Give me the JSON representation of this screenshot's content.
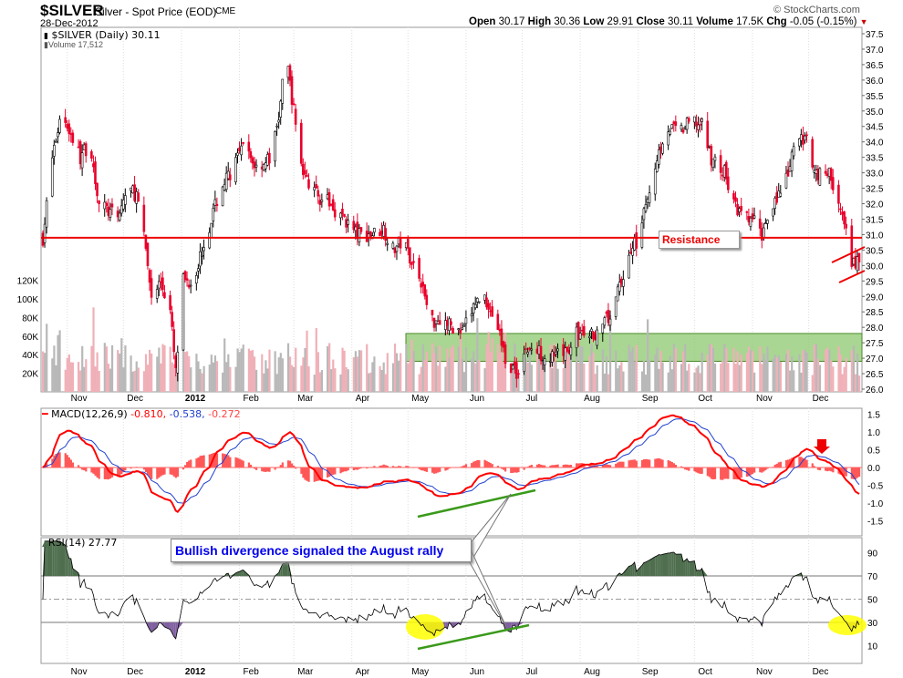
{
  "header": {
    "symbol": "$SILVER",
    "name": "Silver - Spot Price (EOD)",
    "exchange": "CME",
    "date": "28-Dec-2012",
    "brand": "© StockCharts.com",
    "quote": {
      "open_label": "Open",
      "open": "30.17",
      "high_label": "High",
      "high": "30.36",
      "low_label": "Low",
      "low": "29.91",
      "close_label": "Close",
      "close": "30.11",
      "volume_label": "Volume",
      "volume": "17.5K",
      "chg_label": "Chg",
      "chg": "-0.05 (-0.15%)"
    }
  },
  "legend": {
    "price": "$SILVER (Daily) 30.11",
    "volume": "Volume 17,512",
    "macd_name": "MACD(12,26,9)",
    "macd_v1": "-0.810,",
    "macd_v2": "-0.538,",
    "macd_v3": "-0.272",
    "rsi": "RSI(14) 27.77"
  },
  "annotations": {
    "resistance": "Resistance",
    "callout": "Bullish divergence signaled the August rally",
    "resistance_level": 30.9,
    "support_zone": [
      26.9,
      27.8
    ]
  },
  "colors": {
    "up": "#000000",
    "down": "#e8002a",
    "volume_up": "#b8b8b8",
    "volume_down": "#f0b0b8",
    "macd": "#ff0000",
    "signal": "#2040d0",
    "hist": "#ff3030",
    "zone": "#8cc86e",
    "trend": "#3a9a1a",
    "highlight": "#ffff00",
    "overbought": "#4e6e4e",
    "oversold": "#8060a0",
    "callout_text": "#0000ee"
  },
  "chart_data": {
    "type": "candlestick",
    "xrange": [
      "2011-10-19",
      "2012-12-28"
    ],
    "price_ylim": [
      26.0,
      37.5
    ],
    "price_ticks": [
      "37.5",
      "37.0",
      "36.5",
      "36.0",
      "35.5",
      "35.0",
      "34.5",
      "34.0",
      "33.5",
      "33.0",
      "32.5",
      "32.0",
      "31.5",
      "31.0",
      "30.5",
      "30.0",
      "29.5",
      "29.0",
      "28.5",
      "28.0",
      "27.5",
      "27.0",
      "26.5",
      "26.0"
    ],
    "volume_ticks": [
      "20K",
      "40K",
      "60K",
      "80K",
      "100K",
      "120K"
    ],
    "macd_ticks": [
      "1.5",
      "1.0",
      "0.5",
      "0.0",
      "-0.5",
      "-1.0",
      "-1.5"
    ],
    "rsi_ticks": [
      "90",
      "70",
      "50",
      "30",
      "10"
    ],
    "months": [
      {
        "label": "Nov",
        "date": "2011-11-01"
      },
      {
        "label": "Dec",
        "date": "2011-12-01"
      },
      {
        "label": "2012",
        "date": "2012-01-01"
      },
      {
        "label": "Feb",
        "date": "2012-02-01"
      },
      {
        "label": "Mar",
        "date": "2012-03-01"
      },
      {
        "label": "Apr",
        "date": "2012-04-01"
      },
      {
        "label": "May",
        "date": "2012-05-01"
      },
      {
        "label": "Jun",
        "date": "2012-06-01"
      },
      {
        "label": "Jul",
        "date": "2012-07-01"
      },
      {
        "label": "Aug",
        "date": "2012-08-01"
      },
      {
        "label": "Sep",
        "date": "2012-09-01"
      },
      {
        "label": "Oct",
        "date": "2012-10-01"
      },
      {
        "label": "Nov",
        "date": "2012-11-01"
      },
      {
        "label": "Dec",
        "date": "2012-12-01"
      }
    ],
    "close_keypoints": [
      [
        "2011-10-19",
        30.9
      ],
      [
        "2011-10-24",
        33.5
      ],
      [
        "2011-10-29",
        35.0
      ],
      [
        "2011-11-08",
        33.5
      ],
      [
        "2011-11-13",
        34.0
      ],
      [
        "2011-11-18",
        32.0
      ],
      [
        "2011-11-28",
        31.5
      ],
      [
        "2011-12-03",
        32.5
      ],
      [
        "2011-12-08",
        32.3
      ],
      [
        "2011-12-13",
        30.5
      ],
      [
        "2011-12-16",
        29.0
      ],
      [
        "2011-12-21",
        29.5
      ],
      [
        "2011-12-26",
        28.5
      ],
      [
        "2011-12-29",
        26.5
      ],
      [
        "2012-01-02",
        29.5
      ],
      [
        "2012-01-07",
        29.5
      ],
      [
        "2012-01-12",
        30.5
      ],
      [
        "2012-01-17",
        31.5
      ],
      [
        "2012-01-22",
        32.5
      ],
      [
        "2012-01-27",
        33.0
      ],
      [
        "2012-02-03",
        33.8
      ],
      [
        "2012-02-10",
        33.2
      ],
      [
        "2012-02-18",
        33.5
      ],
      [
        "2012-02-22",
        34.8
      ],
      [
        "2012-02-26",
        36.8
      ],
      [
        "2012-03-01",
        35.0
      ],
      [
        "2012-03-06",
        33.0
      ],
      [
        "2012-03-13",
        32.3
      ],
      [
        "2012-03-20",
        32.0
      ],
      [
        "2012-03-28",
        31.5
      ],
      [
        "2012-04-04",
        31.0
      ],
      [
        "2012-04-11",
        31.0
      ],
      [
        "2012-04-18",
        31.2
      ],
      [
        "2012-04-23",
        30.5
      ],
      [
        "2012-04-28",
        30.8
      ],
      [
        "2012-05-03",
        30.2
      ],
      [
        "2012-05-08",
        29.5
      ],
      [
        "2012-05-13",
        28.2
      ],
      [
        "2012-05-18",
        28.3
      ],
      [
        "2012-05-25",
        28.0
      ],
      [
        "2012-05-30",
        27.8
      ],
      [
        "2012-06-06",
        28.8
      ],
      [
        "2012-06-11",
        29.0
      ],
      [
        "2012-06-18",
        28.0
      ],
      [
        "2012-06-22",
        27.0
      ],
      [
        "2012-06-28",
        26.5
      ],
      [
        "2012-07-03",
        27.3
      ],
      [
        "2012-07-10",
        27.2
      ],
      [
        "2012-07-18",
        27.0
      ],
      [
        "2012-07-25",
        27.2
      ],
      [
        "2012-07-30",
        27.8
      ],
      [
        "2012-08-06",
        27.7
      ],
      [
        "2012-08-13",
        28.0
      ],
      [
        "2012-08-18",
        28.5
      ],
      [
        "2012-08-23",
        29.5
      ],
      [
        "2012-08-28",
        30.5
      ],
      [
        "2012-09-02",
        31.0
      ],
      [
        "2012-09-07",
        32.5
      ],
      [
        "2012-09-11",
        33.5
      ],
      [
        "2012-09-16",
        34.5
      ],
      [
        "2012-09-23",
        34.3
      ],
      [
        "2012-09-30",
        34.7
      ],
      [
        "2012-10-05",
        34.5
      ],
      [
        "2012-10-10",
        33.5
      ],
      [
        "2012-10-17",
        33.0
      ],
      [
        "2012-10-22",
        32.0
      ],
      [
        "2012-10-27",
        31.5
      ],
      [
        "2012-11-01",
        31.5
      ],
      [
        "2012-11-06",
        31.0
      ],
      [
        "2012-11-11",
        32.0
      ],
      [
        "2012-11-18",
        32.5
      ],
      [
        "2012-11-25",
        34.2
      ],
      [
        "2012-11-30",
        34.0
      ],
      [
        "2012-12-05",
        33.0
      ],
      [
        "2012-12-12",
        33.0
      ],
      [
        "2012-12-17",
        32.0
      ],
      [
        "2012-12-21",
        31.0
      ],
      [
        "2012-12-24",
        30.0
      ],
      [
        "2012-12-28",
        30.11
      ]
    ],
    "macd_last": {
      "macd": -0.81,
      "signal": -0.538,
      "hist": -0.272
    },
    "rsi_last": 27.77,
    "rsi_levels": [
      30,
      70
    ]
  }
}
